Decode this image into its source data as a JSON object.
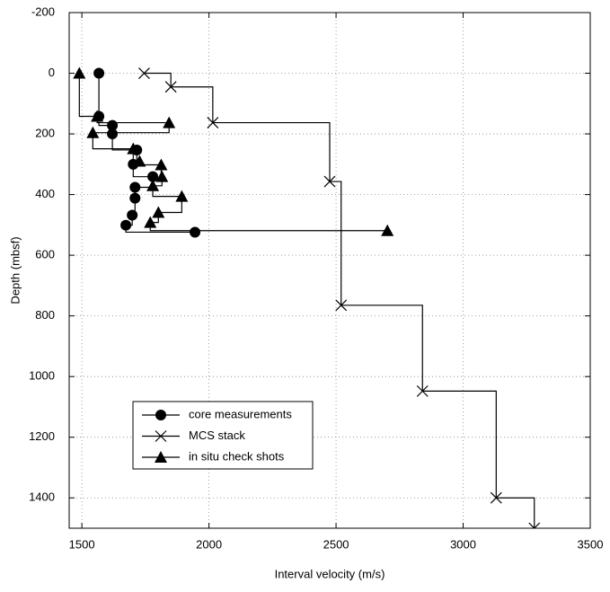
{
  "chart_data": {
    "type": "step-scatter",
    "x_label": "Interval velocity (m/s)",
    "y_label": "Depth (mbsf)",
    "xlim": [
      1450,
      3500
    ],
    "ylim": [
      -200,
      1500
    ],
    "y_inverted": true,
    "xticks": [
      1500,
      2000,
      2500,
      3000,
      3500
    ],
    "yticks": [
      -200,
      0,
      200,
      400,
      600,
      800,
      1000,
      1200,
      1400
    ],
    "grid": true,
    "legend": "lower left",
    "series": [
      {
        "name": "core measurements",
        "marker": "circle",
        "color": "#000000",
        "step": "vh",
        "x": [
          1567,
          1567,
          1620,
          1620,
          1716,
          1702,
          1779,
          1709,
          1709,
          1698,
          1673,
          1945
        ],
        "values": [
          0,
          142,
          172,
          200,
          253,
          300,
          341,
          376,
          412,
          468,
          501,
          524
        ]
      },
      {
        "name": "MCS stack",
        "marker": "x",
        "color": "#000000",
        "step": "hv",
        "x": [
          1745,
          1850,
          2015,
          2475,
          2520,
          2840,
          3130,
          3280
        ],
        "values": [
          0,
          45,
          163,
          357,
          765,
          1048,
          1400,
          1500
        ]
      },
      {
        "name": "in situ check shots",
        "marker": "triangle",
        "color": "#000000",
        "step": "vh",
        "x": [
          1490,
          1560,
          1843,
          1543,
          1702,
          1727,
          1812,
          1815,
          1779,
          1893,
          1801,
          1769,
          2702
        ],
        "values": [
          0,
          142,
          163,
          196,
          249,
          290,
          302,
          341,
          371,
          406,
          459,
          492,
          519
        ]
      }
    ]
  }
}
